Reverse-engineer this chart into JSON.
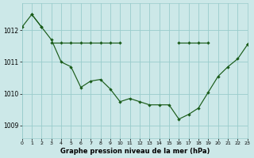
{
  "title": "Graphe pression niveau de la mer (hPa)",
  "bg_color": "#cce8e8",
  "grid_color": "#99cccc",
  "line_color": "#1a5c1a",
  "xlim": [
    0,
    23
  ],
  "ylim": [
    1008.6,
    1012.85
  ],
  "yticks": [
    1009,
    1010,
    1011,
    1012
  ],
  "xticks": [
    0,
    1,
    2,
    3,
    4,
    5,
    6,
    7,
    8,
    9,
    10,
    11,
    12,
    13,
    14,
    15,
    16,
    17,
    18,
    19,
    20,
    21,
    22,
    23
  ],
  "series_main": [
    null,
    1012.5,
    1012.1,
    1011.7,
    1011.0,
    1010.85,
    1010.2,
    1010.4,
    1010.45,
    1010.15,
    1009.75,
    1009.85,
    1009.75,
    1009.65,
    1009.65,
    1009.65,
    1009.2,
    1009.35,
    1009.55,
    1010.05,
    1010.55,
    1010.85,
    1011.1,
    1011.55
  ],
  "series_diagonal": [
    1012.1,
    1012.5,
    1012.1,
    null,
    null,
    null,
    null,
    null,
    null,
    null,
    null,
    null,
    null,
    null,
    null,
    null,
    null,
    null,
    null,
    null,
    null,
    null,
    null,
    1011.55
  ],
  "series_flat": [
    null,
    null,
    null,
    1011.6,
    1011.6,
    1011.6,
    1011.6,
    1011.6,
    1011.6,
    1011.6,
    1011.6,
    null,
    null,
    null,
    null,
    null,
    1011.6,
    1011.6,
    1011.6,
    1011.6,
    null,
    null,
    null,
    1011.55
  ]
}
